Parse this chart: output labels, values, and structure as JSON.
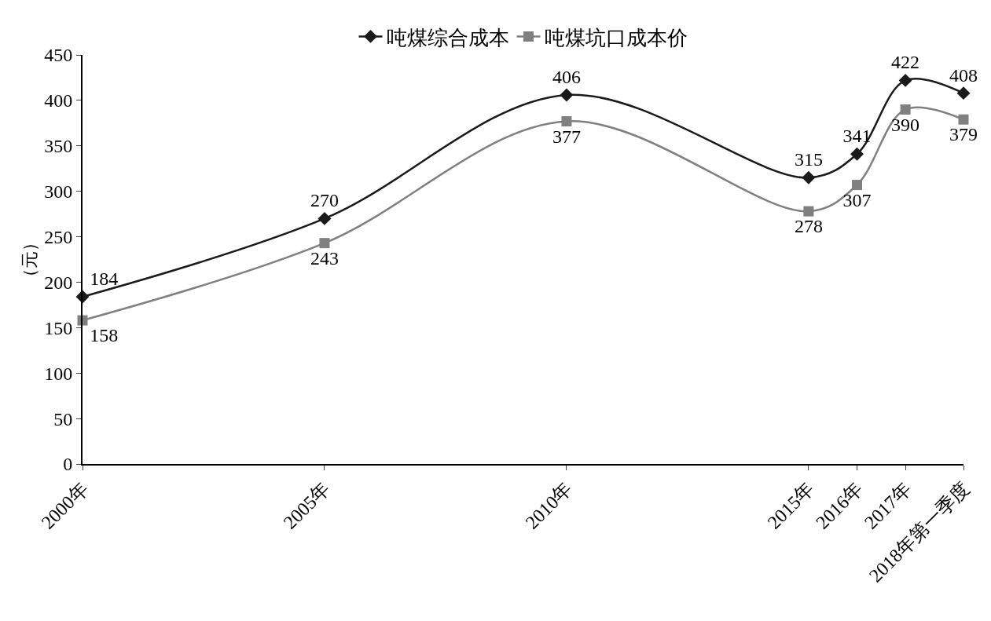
{
  "chart_data": {
    "type": "line",
    "ylabel": "（元）",
    "x": [
      2000,
      2005,
      2010,
      2015,
      2016,
      2017,
      2018.2
    ],
    "series": [
      {
        "name": "吨煤综合成本",
        "color": "#1a1a1a",
        "marker": "diamond",
        "values": [
          184,
          270,
          406,
          315,
          341,
          422,
          408
        ]
      },
      {
        "name": "吨煤坑口成本价",
        "color": "#808080",
        "marker": "square",
        "values": [
          158,
          243,
          377,
          278,
          307,
          390,
          379
        ]
      }
    ],
    "xlim": [
      2000,
      2018.2
    ],
    "xticks": [
      {
        "value": 2000,
        "label": "2000年"
      },
      {
        "value": 2005,
        "label": "2005年"
      },
      {
        "value": 2010,
        "label": "2010年"
      },
      {
        "value": 2015,
        "label": "2015年"
      },
      {
        "value": 2016,
        "label": "2016年"
      },
      {
        "value": 2017,
        "label": "2017年"
      },
      {
        "value": 2018.2,
        "label": "2018年第一季度"
      }
    ],
    "ylim": [
      0,
      450
    ],
    "yticks": [
      0,
      50,
      100,
      150,
      200,
      250,
      300,
      350,
      400,
      450
    ],
    "data_labels": true,
    "legend": "top",
    "line_style": "solid"
  }
}
